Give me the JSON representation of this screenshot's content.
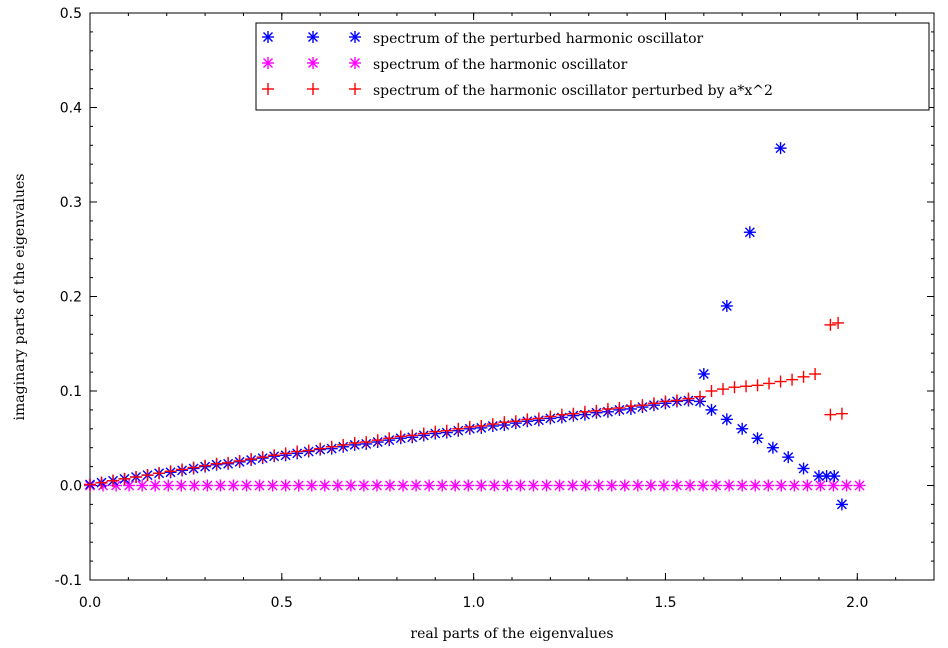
{
  "chart_data": {
    "type": "scatter",
    "title": "",
    "xlabel": "real parts of the eigenvalues",
    "ylabel": "imaginary parts of the eigenvalues",
    "xlim": [
      0.0,
      2.2
    ],
    "ylim": [
      -0.1,
      0.5
    ],
    "xticks": [
      "0.0",
      "0.5",
      "1.0",
      "1.5",
      "2.0"
    ],
    "yticks": [
      "-0.1",
      "0.0",
      "0.1",
      "0.2",
      "0.3",
      "0.4",
      "0.5"
    ],
    "grid": false,
    "legend_position": "top-right",
    "series": [
      {
        "name": "spectrum of the perturbed harmonic oscillator",
        "marker": "asterisk",
        "color": "#0000ff",
        "x": [
          0.0,
          0.03,
          0.06,
          0.09,
          0.12,
          0.15,
          0.18,
          0.21,
          0.24,
          0.27,
          0.3,
          0.33,
          0.36,
          0.39,
          0.42,
          0.45,
          0.48,
          0.51,
          0.54,
          0.57,
          0.6,
          0.63,
          0.66,
          0.69,
          0.72,
          0.75,
          0.78,
          0.81,
          0.84,
          0.87,
          0.9,
          0.93,
          0.96,
          0.99,
          1.02,
          1.05,
          1.08,
          1.11,
          1.14,
          1.17,
          1.2,
          1.23,
          1.26,
          1.29,
          1.32,
          1.35,
          1.38,
          1.41,
          1.44,
          1.47,
          1.5,
          1.53,
          1.56,
          1.59,
          1.6,
          1.62,
          1.66,
          1.66,
          1.7,
          1.72,
          1.74,
          1.78,
          1.8,
          1.82,
          1.86,
          1.9,
          1.92,
          1.94,
          1.96
        ],
        "y": [
          0.001,
          0.003,
          0.005,
          0.007,
          0.009,
          0.011,
          0.013,
          0.014,
          0.016,
          0.018,
          0.02,
          0.022,
          0.023,
          0.025,
          0.027,
          0.029,
          0.031,
          0.032,
          0.034,
          0.036,
          0.038,
          0.039,
          0.041,
          0.043,
          0.044,
          0.046,
          0.048,
          0.05,
          0.051,
          0.053,
          0.055,
          0.056,
          0.058,
          0.06,
          0.061,
          0.063,
          0.064,
          0.066,
          0.068,
          0.069,
          0.071,
          0.072,
          0.074,
          0.075,
          0.077,
          0.078,
          0.08,
          0.081,
          0.083,
          0.085,
          0.087,
          0.089,
          0.09,
          0.089,
          0.118,
          0.08,
          0.19,
          0.07,
          0.06,
          0.268,
          0.05,
          0.04,
          0.357,
          0.03,
          0.018,
          0.01,
          0.01,
          0.01,
          -0.02
        ]
      },
      {
        "name": "spectrum of the harmonic oscillator",
        "marker": "asterisk",
        "color": "#ff00ff",
        "x": [
          0.0,
          0.034,
          0.068,
          0.102,
          0.136,
          0.17,
          0.204,
          0.238,
          0.272,
          0.306,
          0.34,
          0.374,
          0.408,
          0.442,
          0.476,
          0.51,
          0.544,
          0.578,
          0.612,
          0.646,
          0.68,
          0.714,
          0.748,
          0.782,
          0.816,
          0.85,
          0.884,
          0.918,
          0.952,
          0.986,
          1.02,
          1.054,
          1.088,
          1.122,
          1.156,
          1.19,
          1.224,
          1.258,
          1.292,
          1.326,
          1.36,
          1.394,
          1.428,
          1.462,
          1.496,
          1.53,
          1.564,
          1.598,
          1.632,
          1.666,
          1.7,
          1.734,
          1.768,
          1.802,
          1.836,
          1.87,
          1.904,
          1.938,
          1.972,
          2.006
        ],
        "y": [
          0.0,
          0.0,
          0.0,
          0.0,
          0.0,
          0.0,
          0.0,
          0.0,
          0.0,
          0.0,
          0.0,
          0.0,
          0.0,
          0.0,
          0.0,
          0.0,
          0.0,
          0.0,
          0.0,
          0.0,
          0.0,
          0.0,
          0.0,
          0.0,
          0.0,
          0.0,
          0.0,
          0.0,
          0.0,
          0.0,
          0.0,
          0.0,
          0.0,
          0.0,
          0.0,
          0.0,
          0.0,
          0.0,
          0.0,
          0.0,
          0.0,
          0.0,
          0.0,
          0.0,
          0.0,
          0.0,
          0.0,
          0.0,
          0.0,
          0.0,
          0.0,
          0.0,
          0.0,
          0.0,
          0.0,
          0.0,
          0.0,
          0.0,
          0.0,
          0.0
        ]
      },
      {
        "name": "spectrum of the harmonic oscillator perturbed by a*x^2",
        "marker": "plus",
        "color": "#ff0000",
        "x": [
          0.0,
          0.03,
          0.06,
          0.09,
          0.12,
          0.15,
          0.18,
          0.21,
          0.24,
          0.27,
          0.3,
          0.33,
          0.36,
          0.39,
          0.42,
          0.45,
          0.48,
          0.51,
          0.54,
          0.57,
          0.6,
          0.63,
          0.66,
          0.69,
          0.72,
          0.75,
          0.78,
          0.81,
          0.84,
          0.87,
          0.9,
          0.93,
          0.96,
          0.99,
          1.02,
          1.05,
          1.08,
          1.11,
          1.14,
          1.17,
          1.2,
          1.23,
          1.26,
          1.29,
          1.32,
          1.35,
          1.38,
          1.41,
          1.44,
          1.47,
          1.5,
          1.53,
          1.56,
          1.59,
          1.62,
          1.65,
          1.68,
          1.71,
          1.74,
          1.77,
          1.8,
          1.83,
          1.86,
          1.89,
          1.93,
          1.95,
          1.93,
          1.96
        ],
        "y": [
          0.001,
          0.003,
          0.005,
          0.007,
          0.009,
          0.011,
          0.013,
          0.015,
          0.017,
          0.019,
          0.021,
          0.023,
          0.024,
          0.026,
          0.028,
          0.03,
          0.032,
          0.034,
          0.036,
          0.037,
          0.039,
          0.041,
          0.043,
          0.045,
          0.046,
          0.048,
          0.05,
          0.052,
          0.053,
          0.055,
          0.057,
          0.058,
          0.06,
          0.062,
          0.063,
          0.065,
          0.067,
          0.068,
          0.07,
          0.071,
          0.073,
          0.075,
          0.076,
          0.078,
          0.079,
          0.081,
          0.082,
          0.084,
          0.085,
          0.087,
          0.089,
          0.09,
          0.092,
          0.094,
          0.1,
          0.102,
          0.104,
          0.105,
          0.106,
          0.108,
          0.11,
          0.112,
          0.115,
          0.118,
          0.17,
          0.172,
          0.075,
          0.076
        ]
      }
    ]
  }
}
